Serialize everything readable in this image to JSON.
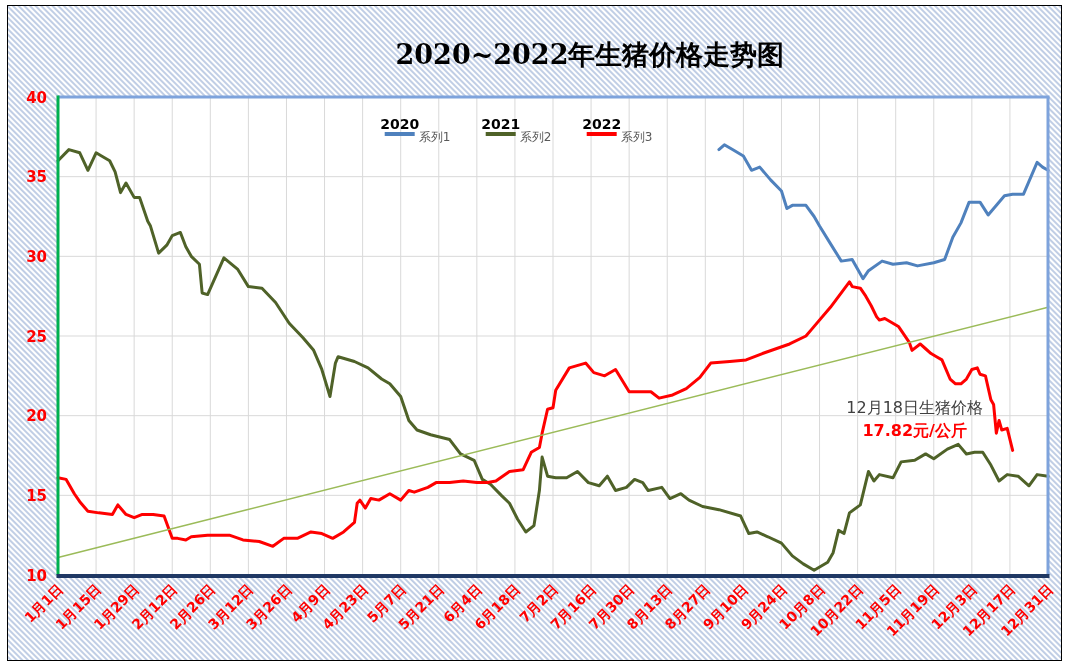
{
  "chart_data": {
    "type": "line",
    "title": "2020~2022年生猪价格走势图",
    "xlim": [
      "--01-01",
      "--12-31"
    ],
    "ylim": [
      10,
      40
    ],
    "yticks": [
      10,
      15,
      20,
      25,
      30,
      35,
      40
    ],
    "xticks": [
      {
        "value": "--01-01",
        "label": "1月1日"
      },
      {
        "value": "--01-15",
        "label": "1月15日"
      },
      {
        "value": "--01-29",
        "label": "1月29日"
      },
      {
        "value": "--02-12",
        "label": "2月12日"
      },
      {
        "value": "--02-26",
        "label": "2月26日"
      },
      {
        "value": "--03-12",
        "label": "3月12日"
      },
      {
        "value": "--03-26",
        "label": "3月26日"
      },
      {
        "value": "--04-09",
        "label": "4月9日"
      },
      {
        "value": "--04-23",
        "label": "4月23日"
      },
      {
        "value": "--05-07",
        "label": "5月7日"
      },
      {
        "value": "--05-21",
        "label": "5月21日"
      },
      {
        "value": "--06-04",
        "label": "6月4日"
      },
      {
        "value": "--06-18",
        "label": "6月18日"
      },
      {
        "value": "--07-02",
        "label": "7月2日"
      },
      {
        "value": "--07-16",
        "label": "7月16日"
      },
      {
        "value": "--07-30",
        "label": "7月30日"
      },
      {
        "value": "--08-13",
        "label": "8月13日"
      },
      {
        "value": "--08-27",
        "label": "8月27日"
      },
      {
        "value": "--09-10",
        "label": "9月10日"
      },
      {
        "value": "--09-24",
        "label": "9月24日"
      },
      {
        "value": "--10-08",
        "label": "10月8日"
      },
      {
        "value": "--10-22",
        "label": "10月22日"
      },
      {
        "value": "--11-05",
        "label": "11月5日"
      },
      {
        "value": "--11-19",
        "label": "11月19日"
      },
      {
        "value": "--12-03",
        "label": "12月3日"
      },
      {
        "value": "--12-17",
        "label": "12月17日"
      },
      {
        "value": "--12-31",
        "label": "12月31日"
      }
    ],
    "grid": true,
    "legend": "top",
    "series": [
      {
        "name": "系列1",
        "color": "#4f81bd",
        "x": [
          "--09-01",
          "--09-03",
          "--09-06",
          "--09-10",
          "--09-13",
          "--09-16",
          "--09-20",
          "--09-24",
          "--09-26",
          "--09-28",
          "--10-03",
          "--10-06",
          "--10-08",
          "--10-12",
          "--10-16",
          "--10-20",
          "--10-24",
          "--10-26",
          "--10-31",
          "--11-04",
          "--11-09",
          "--11-13",
          "--11-19",
          "--11-23",
          "--11-26",
          "--11-29",
          "--12-02",
          "--12-06",
          "--12-09",
          "--12-15",
          "--12-18",
          "--12-22",
          "--12-27",
          "--12-29",
          "--12-31"
        ],
        "values": [
          36.7,
          37.0,
          36.7,
          36.3,
          35.4,
          35.6,
          34.8,
          34.1,
          33.0,
          33.2,
          33.2,
          32.5,
          31.9,
          30.8,
          29.7,
          29.8,
          28.6,
          29.1,
          29.7,
          29.5,
          29.6,
          29.4,
          29.6,
          29.8,
          31.2,
          32.1,
          33.4,
          33.4,
          32.6,
          33.8,
          33.9,
          33.9,
          35.9,
          35.6,
          35.4
        ]
      },
      {
        "name": "系列2",
        "color": "#4f6228",
        "x": [
          "--01-01",
          "--01-05",
          "--01-09",
          "--01-12",
          "--01-15",
          "--01-17",
          "--01-20",
          "--01-22",
          "--01-24",
          "--01-26",
          "--01-29",
          "--01-31",
          "--02-03",
          "--02-04",
          "--02-07",
          "--02-10",
          "--02-12",
          "--02-15",
          "--02-17",
          "--02-19",
          "--02-22",
          "--02-23",
          "--02-25",
          "--03-03",
          "--03-08",
          "--03-12",
          "--03-17",
          "--03-22",
          "--03-27",
          "--04-01",
          "--04-05",
          "--04-08",
          "--04-11",
          "--04-13",
          "--04-14",
          "--04-20",
          "--04-25",
          "--04-30",
          "--05-03",
          "--05-07",
          "--05-10",
          "--05-13",
          "--05-18",
          "--05-25",
          "--05-29",
          "--06-03",
          "--06-06",
          "--06-09",
          "--06-13",
          "--06-16",
          "--06-19",
          "--06-22",
          "--06-25",
          "--06-27",
          "--06-28",
          "--06-30",
          "--07-03",
          "--07-07",
          "--07-11",
          "--07-15",
          "--07-19",
          "--07-22",
          "--07-25",
          "--07-29",
          "--08-01",
          "--08-04",
          "--08-06",
          "--08-11",
          "--08-14",
          "--08-18",
          "--08-21",
          "--08-26",
          "--09-01",
          "--09-09",
          "--09-12",
          "--09-15",
          "--09-19",
          "--09-24",
          "--09-28",
          "--10-02",
          "--10-06",
          "--10-11",
          "--10-13",
          "--10-15",
          "--10-17",
          "--10-19",
          "--10-23",
          "--10-26",
          "--10-28",
          "--10-30",
          "--11-04",
          "--11-07",
          "--11-12",
          "--11-16",
          "--11-19",
          "--11-24",
          "--11-28",
          "--12-01",
          "--12-04",
          "--12-07",
          "--12-10",
          "--12-13",
          "--12-16",
          "--12-20",
          "--12-24",
          "--12-27",
          "--12-31"
        ],
        "values": [
          36.0,
          36.7,
          36.5,
          35.4,
          36.5,
          36.3,
          36.0,
          35.3,
          34.0,
          34.6,
          33.7,
          33.7,
          32.2,
          31.9,
          30.2,
          30.7,
          31.3,
          31.5,
          30.6,
          30.0,
          29.5,
          27.7,
          27.6,
          29.9,
          29.2,
          28.1,
          28.0,
          27.1,
          25.8,
          24.9,
          24.1,
          22.9,
          21.2,
          23.3,
          23.7,
          23.4,
          23.0,
          22.3,
          22.0,
          21.2,
          19.7,
          19.1,
          18.8,
          18.5,
          17.6,
          17.2,
          16.0,
          15.7,
          15.0,
          14.5,
          13.5,
          12.7,
          13.1,
          15.3,
          17.4,
          16.2,
          16.1,
          16.1,
          16.5,
          15.8,
          15.6,
          16.2,
          15.3,
          15.5,
          16.0,
          15.8,
          15.3,
          15.5,
          14.8,
          15.1,
          14.7,
          14.3,
          14.1,
          13.7,
          12.6,
          12.7,
          12.4,
          12.0,
          11.2,
          10.7,
          10.3,
          10.8,
          11.4,
          12.8,
          12.6,
          13.9,
          14.4,
          16.5,
          15.9,
          16.3,
          16.1,
          17.1,
          17.2,
          17.6,
          17.3,
          17.9,
          18.2,
          17.6,
          17.7,
          17.7,
          16.9,
          15.9,
          16.3,
          16.2,
          15.6,
          16.3,
          16.2
        ]
      },
      {
        "name": "系列3",
        "color": "#ff0000",
        "x": [
          "--01-01",
          "--01-04",
          "--01-07",
          "--01-09",
          "--01-12",
          "--01-16",
          "--01-21",
          "--01-23",
          "--01-26",
          "--01-29",
          "--02-01",
          "--02-05",
          "--02-09",
          "--02-12",
          "--02-14",
          "--02-17",
          "--02-19",
          "--02-25",
          "--03-05",
          "--03-10",
          "--03-16",
          "--03-21",
          "--03-25",
          "--03-30",
          "--04-04",
          "--04-08",
          "--04-12",
          "--04-16",
          "--04-20",
          "--04-21",
          "--04-22",
          "--04-24",
          "--04-26",
          "--04-29",
          "--05-03",
          "--05-07",
          "--05-10",
          "--05-12",
          "--05-17",
          "--05-20",
          "--05-25",
          "--05-30",
          "--06-04",
          "--06-08",
          "--06-11",
          "--06-16",
          "--06-21",
          "--06-24",
          "--06-27",
          "--06-28",
          "--06-30",
          "--07-02",
          "--07-03",
          "--07-08",
          "--07-14",
          "--07-17",
          "--07-21",
          "--07-25",
          "--07-30",
          "--08-07",
          "--08-10",
          "--08-15",
          "--08-20",
          "--08-25",
          "--08-29",
          "--09-05",
          "--09-11",
          "--09-17",
          "--09-27",
          "--10-03",
          "--10-05",
          "--10-12",
          "--10-19",
          "--10-20",
          "--10-23",
          "--10-25",
          "--10-27",
          "--10-29",
          "--10-30",
          "--11-01",
          "--11-06",
          "--11-10",
          "--11-11",
          "--11-14",
          "--11-16",
          "--11-18",
          "--11-20",
          "--11-22",
          "--11-25",
          "--11-27",
          "--11-29",
          "--12-01",
          "--12-03",
          "--12-05",
          "--12-06",
          "--12-08",
          "--12-10",
          "--12-11",
          "--12-12",
          "--12-13",
          "--12-14",
          "--12-16",
          "--12-18"
        ],
        "values": [
          16.1,
          16.0,
          15.1,
          14.6,
          14.0,
          13.9,
          13.8,
          14.4,
          13.8,
          13.6,
          13.8,
          13.8,
          13.7,
          12.3,
          12.3,
          12.2,
          12.4,
          12.5,
          12.5,
          12.2,
          12.1,
          11.8,
          12.3,
          12.3,
          12.7,
          12.6,
          12.3,
          12.7,
          13.3,
          14.5,
          14.7,
          14.2,
          14.8,
          14.7,
          15.1,
          14.7,
          15.3,
          15.2,
          15.5,
          15.8,
          15.8,
          15.9,
          15.8,
          15.8,
          15.9,
          16.5,
          16.6,
          17.7,
          18.0,
          18.9,
          20.4,
          20.5,
          21.6,
          23.0,
          23.3,
          22.7,
          22.5,
          22.9,
          21.5,
          21.5,
          21.1,
          21.3,
          21.7,
          22.4,
          23.3,
          23.4,
          23.5,
          23.9,
          24.5,
          25.0,
          25.4,
          26.8,
          28.4,
          28.1,
          28.0,
          27.5,
          26.9,
          26.2,
          26.0,
          26.1,
          25.6,
          24.6,
          24.1,
          24.5,
          24.2,
          23.9,
          23.7,
          23.5,
          22.3,
          22.0,
          22.0,
          22.3,
          22.9,
          23.0,
          22.6,
          22.5,
          21.0,
          20.7,
          18.9,
          19.7,
          19.1,
          19.2,
          17.82
        ]
      },
      {
        "type": "line",
        "color": "#9bbb59",
        "x": [
          "--01-01",
          "--12-31"
        ],
        "values": [
          11.1,
          26.8
        ]
      }
    ],
    "annotations": [
      "2020",
      "2021",
      "2022",
      {
        "text": "12月18日生猪价格",
        "x": "--12-18",
        "y": 17.82
      },
      {
        "text": "17.82元/公斤",
        "x": "--12-18",
        "y": 17.82
      }
    ]
  }
}
